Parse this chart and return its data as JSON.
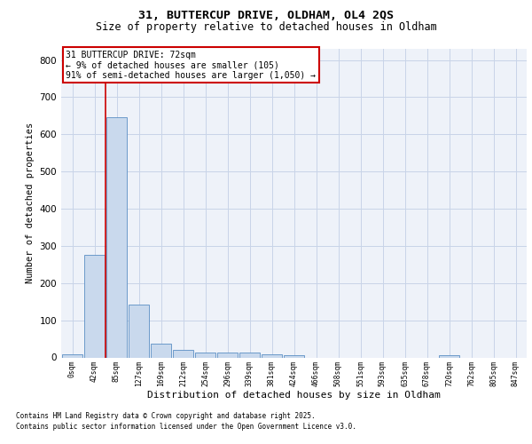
{
  "title_line1": "31, BUTTERCUP DRIVE, OLDHAM, OL4 2QS",
  "title_line2": "Size of property relative to detached houses in Oldham",
  "xlabel": "Distribution of detached houses by size in Oldham",
  "ylabel": "Number of detached properties",
  "bar_labels": [
    "0sqm",
    "42sqm",
    "85sqm",
    "127sqm",
    "169sqm",
    "212sqm",
    "254sqm",
    "296sqm",
    "339sqm",
    "381sqm",
    "424sqm",
    "466sqm",
    "508sqm",
    "551sqm",
    "593sqm",
    "635sqm",
    "678sqm",
    "720sqm",
    "762sqm",
    "805sqm",
    "847sqm"
  ],
  "bar_values": [
    8,
    275,
    645,
    142,
    38,
    20,
    14,
    13,
    12,
    8,
    5,
    0,
    0,
    0,
    0,
    0,
    0,
    5,
    0,
    0,
    0
  ],
  "bar_color": "#c9d9ed",
  "bar_edge_color": "#5b8ec4",
  "bar_edge_width": 0.6,
  "grid_color": "#c8d4e8",
  "bg_color": "#eef2f9",
  "vline_x": 1.5,
  "vline_color": "#cc0000",
  "ylim": [
    0,
    830
  ],
  "annotation_text": "31 BUTTERCUP DRIVE: 72sqm\n← 9% of detached houses are smaller (105)\n91% of semi-detached houses are larger (1,050) →",
  "annotation_box_color": "#ffffff",
  "annotation_box_edge": "#cc0000",
  "footer_line1": "Contains HM Land Registry data © Crown copyright and database right 2025.",
  "footer_line2": "Contains public sector information licensed under the Open Government Licence v3.0."
}
